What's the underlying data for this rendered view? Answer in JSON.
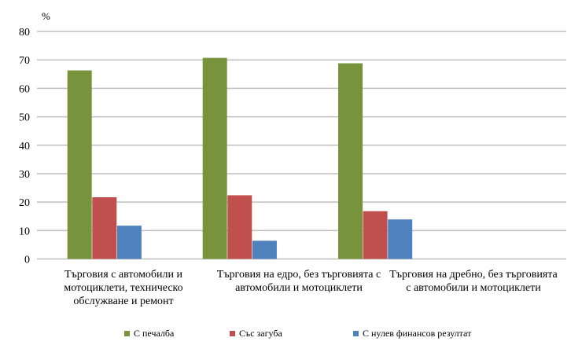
{
  "chart_data": {
    "type": "bar",
    "ylabel": "%",
    "ylim": [
      0,
      80
    ],
    "yticks": [
      "0",
      "10",
      "20",
      "30",
      "40",
      "50",
      "60",
      "70",
      "80"
    ],
    "grid": true,
    "legend_position": "bottom",
    "categories": [
      "Търговия с автомобили и мотоциклети, техническо обслужване и ремонт",
      "Търговия на едро, без търговията с автомобили и мотоциклети",
      "Търговия на дребно, без търговията с автомобили и мотоциклети"
    ],
    "series": [
      {
        "name": "С печалба",
        "color": "#77933c",
        "values": [
          66.3,
          70.7,
          68.8
        ]
      },
      {
        "name": "Със загуба",
        "color": "#c0504d",
        "values": [
          21.7,
          22.4,
          16.8
        ]
      },
      {
        "name": "С нулев финансов резултат",
        "color": "#4f81bd",
        "values": [
          11.7,
          6.4,
          13.9
        ]
      }
    ]
  }
}
